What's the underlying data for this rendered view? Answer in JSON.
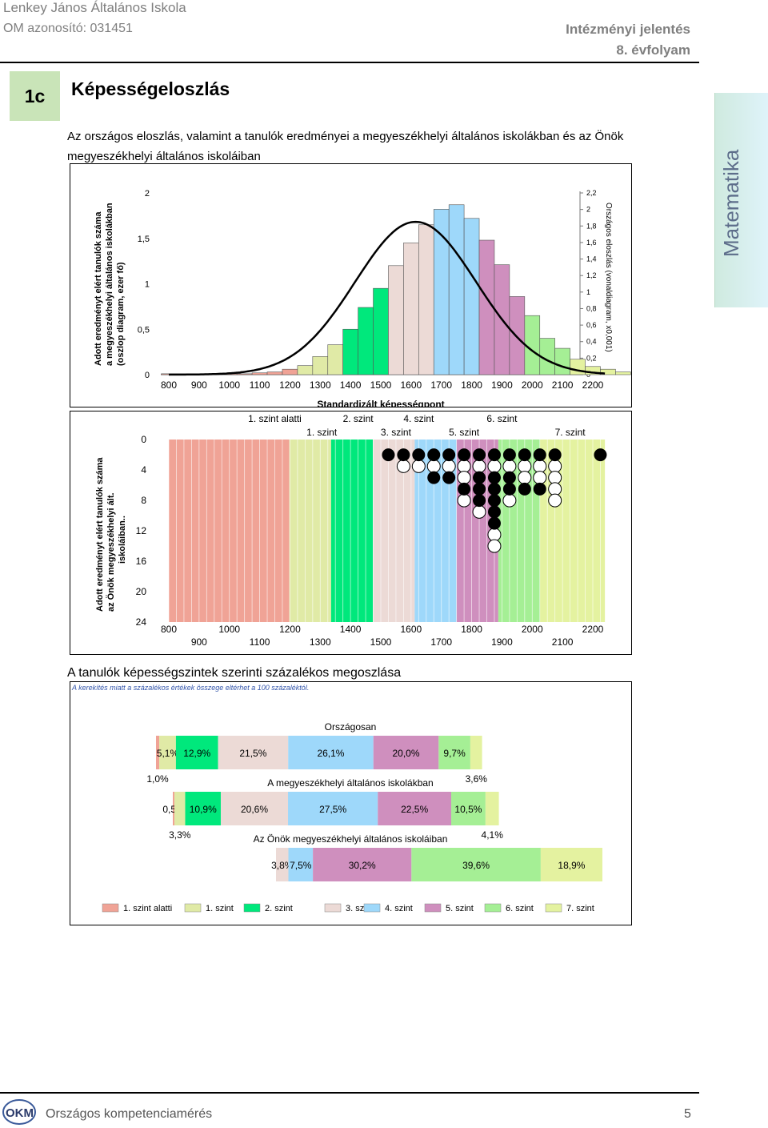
{
  "header": {
    "school": "Lenkey János Általános Iskola",
    "om_id": "OM azonosító: 031451",
    "report": "Intézményi jelentés",
    "grade": "8. évfolyam"
  },
  "section": {
    "code": "1c",
    "title": "Képességeloszlás"
  },
  "intro_text": "Az országos eloszlás, valamint a tanulók eredményei a megyeszékhelyi általános iskolákban és az Önök megyeszékhelyi általános iskoláiban",
  "side_tab": "Matematika",
  "colors": {
    "level0": "#f0a396",
    "level1": "#e0eaa6",
    "level2": "#00e87c",
    "level3": "#ecdad6",
    "level4": "#9ed8fa",
    "level5": "#cf8fbe",
    "level6": "#a5ef95",
    "level7": "#e4f2a0"
  },
  "chart_data": [
    {
      "type": "bar",
      "xlabel": "Standardizált képességpont",
      "ylabel": "Adott eredményt elért tanulók száma a megyeszékhelyi általános iskolákban (oszlop diagram, ezer fő)",
      "y2label": "Országos eloszlás (vonaldiagram, x0,001)",
      "ylim": [
        0,
        2
      ],
      "y2lim": [
        0,
        2.2
      ],
      "yticks": [
        "0",
        "0,5",
        "1",
        "1,5",
        "2"
      ],
      "y2ticks": [
        "0",
        "0,2",
        "0,4",
        "0,6",
        "0,8",
        "1",
        "1,2",
        "1,4",
        "1,6",
        "1,8",
        "2",
        "2,2"
      ],
      "xticks": [
        "800",
        "900",
        "1000",
        "1100",
        "1200",
        "1300",
        "1400",
        "1500",
        "1600",
        "1700",
        "1800",
        "1900",
        "2000",
        "2100",
        "2200"
      ],
      "bin_start": 800,
      "bin_width": 50,
      "values": [
        0.01,
        0.01,
        0.01,
        0.01,
        0.01,
        0.01,
        0.02,
        0.03,
        0.06,
        0.1,
        0.2,
        0.33,
        0.5,
        0.74,
        0.95,
        1.2,
        1.45,
        1.65,
        1.82,
        1.87,
        1.72,
        1.48,
        1.21,
        0.86,
        0.65,
        0.4,
        0.29,
        0.17,
        0.09,
        0.06,
        0.03
      ],
      "bin_levels": [
        0,
        0,
        0,
        0,
        0,
        0,
        0,
        0,
        0,
        1,
        1,
        1,
        2,
        2,
        2,
        3,
        3,
        3,
        4,
        4,
        4,
        5,
        5,
        5,
        6,
        6,
        6,
        7,
        7,
        7,
        7
      ],
      "line": {
        "name": "Országos eloszlás",
        "mean": 1615,
        "sd": 200,
        "peak": 1.85
      }
    },
    {
      "type": "scatter",
      "ylabel": "Adott eredményt elért tanulók száma az Önök megyeszékhelyi ált. iskoláiban..",
      "ylim": [
        0,
        24
      ],
      "yticks": [
        "0",
        "4",
        "8",
        "12",
        "16",
        "20",
        "24"
      ],
      "xticks": [
        "800",
        "900",
        "1000",
        "1100",
        "1200",
        "1300",
        "1400",
        "1500",
        "1600",
        "1700",
        "1800",
        "1900",
        "2000",
        "2100",
        "2200"
      ],
      "level_labels_top": [
        "1. szint alatti",
        "2. szint",
        "4. szint",
        "6. szint"
      ],
      "level_labels_bottom": [
        "1. szint",
        "3. szint",
        "5. szint",
        "7. szint"
      ],
      "bands": [
        {
          "level": 0,
          "from": 800,
          "to": 1198
        },
        {
          "level": 1,
          "from": 1198,
          "to": 1336
        },
        {
          "level": 2,
          "from": 1336,
          "to": 1474
        },
        {
          "level": 3,
          "from": 1474,
          "to": 1612
        },
        {
          "level": 4,
          "from": 1612,
          "to": 1750
        },
        {
          "level": 5,
          "from": 1750,
          "to": 1888
        },
        {
          "level": 6,
          "from": 1888,
          "to": 2026
        },
        {
          "level": 7,
          "from": 2026,
          "to": 2240
        }
      ],
      "dots": [
        {
          "x": 1525,
          "filled": [
            1
          ],
          "empty": []
        },
        {
          "x": 1575,
          "filled": [
            1
          ],
          "empty": [
            2
          ]
        },
        {
          "x": 1625,
          "filled": [
            1
          ],
          "empty": [
            2
          ]
        },
        {
          "x": 1675,
          "filled": [
            1,
            3
          ],
          "empty": [
            2
          ]
        },
        {
          "x": 1725,
          "filled": [
            1,
            3
          ],
          "empty": [
            2
          ]
        },
        {
          "x": 1775,
          "filled": [
            1,
            4
          ],
          "empty": [
            2,
            3,
            5
          ]
        },
        {
          "x": 1825,
          "filled": [
            1,
            3,
            4,
            5
          ],
          "empty": [
            2,
            6
          ]
        },
        {
          "x": 1875,
          "filled": [
            1,
            3,
            4,
            5,
            6,
            7
          ],
          "empty": [
            2,
            8,
            9
          ]
        },
        {
          "x": 1925,
          "filled": [
            1,
            3,
            4
          ],
          "empty": [
            2,
            5
          ]
        },
        {
          "x": 1975,
          "filled": [
            1,
            4
          ],
          "empty": [
            2,
            3
          ]
        },
        {
          "x": 2025,
          "filled": [
            1,
            4
          ],
          "empty": [
            2,
            3
          ]
        },
        {
          "x": 2075,
          "filled": [
            1
          ],
          "empty": [
            2,
            3,
            4,
            5
          ]
        },
        {
          "x": 2225,
          "filled": [
            1
          ],
          "empty": []
        }
      ]
    },
    {
      "type": "bar",
      "stacked": "horizontal-percent",
      "note": "A kerekítés miatt a százalékos értékek összege eltérhet a 100 százaléktól.",
      "legend": [
        "1. szint alatti",
        "1. szint",
        "2. szint",
        "3. szint",
        "4. szint",
        "5. szint",
        "6. szint",
        "7. szint"
      ],
      "rows": [
        {
          "name": "Országosan",
          "values": [
            1.0,
            5.1,
            12.9,
            21.5,
            26.1,
            20.0,
            9.7,
            3.6
          ],
          "labels": [
            "1,0%",
            "5,1%",
            "12,9%",
            "21,5%",
            "26,1%",
            "20,0%",
            "9,7%",
            "3,6%"
          ]
        },
        {
          "name": "A megyeszékhelyi általános iskolákban",
          "values": [
            0.5,
            3.3,
            10.9,
            20.6,
            27.5,
            22.5,
            10.5,
            4.1
          ],
          "labels": [
            "0,5%",
            "3,3%",
            "10,9%",
            "20,6%",
            "27,5%",
            "22,5%",
            "10,5%",
            "4,1%"
          ]
        },
        {
          "name": "Az Önök megyeszékhelyi általános iskoláiban",
          "values": [
            0,
            0,
            0,
            3.8,
            7.5,
            30.2,
            39.6,
            18.9
          ],
          "labels": [
            "",
            "",
            "",
            "3,8%",
            "7,5%",
            "30,2%",
            "39,6%",
            "18,9%"
          ]
        }
      ]
    }
  ],
  "pct_caption": "A tanulók képességszintek szerinti százalékos megoszlása",
  "footer": {
    "text": "Országos kompetenciamérés",
    "page": "5",
    "logo_text": "OKM"
  }
}
